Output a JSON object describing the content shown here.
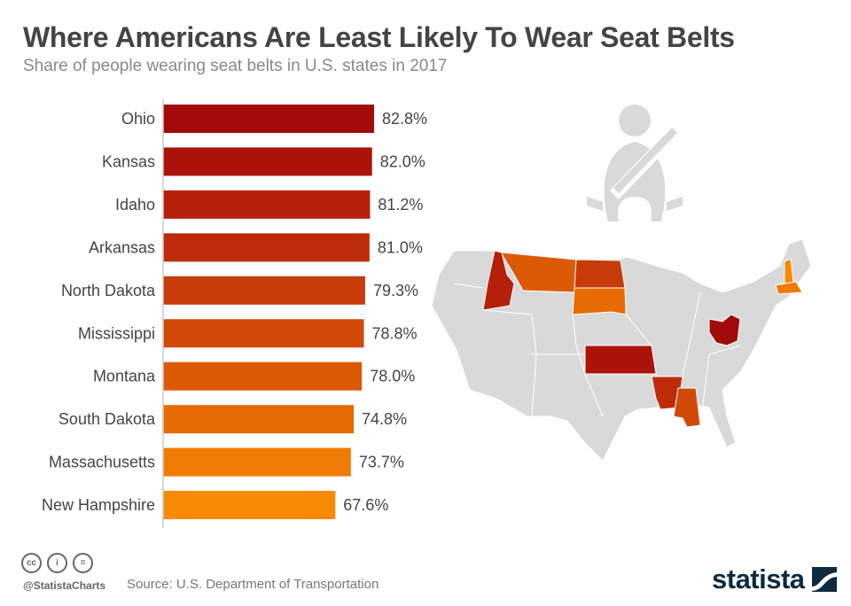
{
  "title": "Where Americans Are Least Likely To Wear Seat Belts",
  "subtitle": "Share of people wearing seat belts in U.S. states in 2017",
  "chart_data": {
    "type": "bar",
    "orientation": "horizontal",
    "categories": [
      "Ohio",
      "Kansas",
      "Idaho",
      "Arkansas",
      "North Dakota",
      "Mississippi",
      "Montana",
      "South Dakota",
      "Massachusetts",
      "New Hampshire"
    ],
    "values": [
      82.8,
      82.0,
      81.2,
      81.0,
      79.3,
      78.8,
      78.0,
      74.8,
      73.7,
      67.6
    ],
    "value_labels": [
      "82.8%",
      "82.0%",
      "81.2%",
      "81.0%",
      "79.3%",
      "78.8%",
      "78.0%",
      "74.8%",
      "73.7%",
      "67.6%"
    ],
    "colors": [
      "#a30b0b",
      "#ab130b",
      "#b5200b",
      "#be2c0b",
      "#c83b0a",
      "#d14a08",
      "#dc5a06",
      "#e86a04",
      "#ef7a04",
      "#f68a04"
    ],
    "xlim": [
      0,
      100
    ],
    "grid": false,
    "title": "Where Americans Are Least Likely To Wear Seat Belts",
    "subtitle": "Share of people wearing seat belts in U.S. states in 2017"
  },
  "map": {
    "base_color": "#d9d9d9",
    "highlighted_states": [
      "Ohio",
      "Kansas",
      "Idaho",
      "Arkansas",
      "North Dakota",
      "Mississippi",
      "Montana",
      "South Dakota",
      "Massachusetts",
      "New Hampshire"
    ],
    "icon": "seat-belt-icon"
  },
  "footer": {
    "handle": "@StatistaCharts",
    "source": "Source: U.S. Department of Transportation",
    "license_icons": [
      "cc-icon",
      "attribution-icon",
      "no-derivatives-icon"
    ],
    "logo": "statista"
  }
}
